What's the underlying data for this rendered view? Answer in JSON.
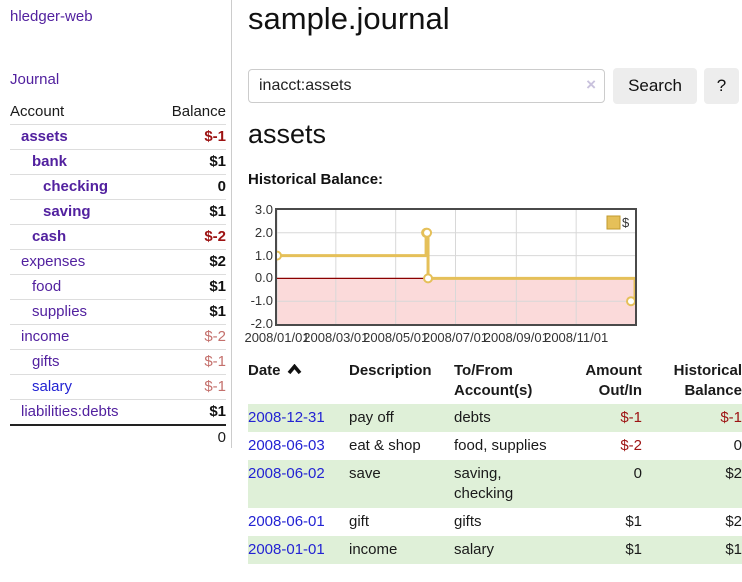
{
  "sidebar": {
    "brand": "hledger-web",
    "nav_journal": "Journal",
    "columns": [
      "Account",
      "Balance"
    ],
    "accounts": [
      {
        "name": "assets",
        "level": 1,
        "strong": true,
        "link": "purple",
        "balance": "$-1",
        "bal": "neg-strong"
      },
      {
        "name": "bank",
        "level": 2,
        "strong": true,
        "link": "purple",
        "balance": "$1",
        "bal": "pos"
      },
      {
        "name": "checking",
        "level": 3,
        "strong": true,
        "link": "purple",
        "balance": "0",
        "bal": "pos"
      },
      {
        "name": "saving",
        "level": 3,
        "strong": true,
        "link": "purple",
        "balance": "$1",
        "bal": "pos"
      },
      {
        "name": "cash",
        "level": 2,
        "strong": true,
        "link": "purple",
        "balance": "$-2",
        "bal": "neg-strong"
      },
      {
        "name": "expenses",
        "level": 1,
        "strong": false,
        "link": "purple",
        "balance": "$2",
        "bal": "pos"
      },
      {
        "name": "food",
        "level": 2,
        "strong": false,
        "link": "purple",
        "balance": "$1",
        "bal": "pos"
      },
      {
        "name": "supplies",
        "level": 2,
        "strong": false,
        "link": "purple",
        "balance": "$1",
        "bal": "pos"
      },
      {
        "name": "income",
        "level": 1,
        "strong": false,
        "link": "purple",
        "balance": "$-2",
        "bal": "neg"
      },
      {
        "name": "gifts",
        "level": 2,
        "strong": false,
        "link": "purple",
        "balance": "$-1",
        "bal": "neg"
      },
      {
        "name": "salary",
        "level": 2,
        "strong": false,
        "link": "blue",
        "balance": "$-1",
        "bal": "neg"
      },
      {
        "name": "liabilities:debts",
        "level": 1,
        "strong": false,
        "link": "purple",
        "balance": "$1",
        "bal": "pos"
      }
    ],
    "total": "0"
  },
  "main": {
    "title": "sample.journal",
    "search": {
      "query": "inacct:assets",
      "clear_icon": "×",
      "button": "Search",
      "help": "?"
    },
    "account_heading": "assets"
  },
  "register": {
    "columns": [
      "Date",
      "Description",
      "To/From Account(s)",
      "Amount Out/In",
      "Historical Balance"
    ],
    "sort": "asc",
    "rows": [
      {
        "date": "2008-12-31",
        "description": "pay off",
        "accounts": "debts",
        "amount": "$-1",
        "amount_neg": true,
        "balance": "$-1",
        "balance_neg": true
      },
      {
        "date": "2008-06-03",
        "description": "eat & shop",
        "accounts": "food, supplies",
        "amount": "$-2",
        "amount_neg": true,
        "balance": "0",
        "balance_neg": false
      },
      {
        "date": "2008-06-02",
        "description": "save",
        "accounts": "saving, checking",
        "amount": "0",
        "amount_neg": false,
        "balance": "$2",
        "balance_neg": false
      },
      {
        "date": "2008-06-01",
        "description": "gift",
        "accounts": "gifts",
        "amount": "$1",
        "amount_neg": false,
        "balance": "$2",
        "balance_neg": false
      },
      {
        "date": "2008-01-01",
        "description": "income",
        "accounts": "salary",
        "amount": "$1",
        "amount_neg": false,
        "balance": "$1",
        "balance_neg": false
      }
    ]
  },
  "chart_data": {
    "type": "line",
    "title": "Historical Balance:",
    "step": true,
    "series": [
      {
        "name": "$",
        "points": [
          [
            "2008-01-01",
            1
          ],
          [
            "2008-06-01",
            2
          ],
          [
            "2008-06-02",
            2
          ],
          [
            "2008-06-03",
            0
          ],
          [
            "2008-12-31",
            -1
          ]
        ]
      }
    ],
    "ylim": [
      -2,
      3
    ],
    "yticks": [
      {
        "label": "3.0",
        "value": 3
      },
      {
        "label": "2.0",
        "value": 2
      },
      {
        "label": "1.0",
        "value": 1
      },
      {
        "label": "0.0",
        "value": 0
      },
      {
        "label": "-1.0",
        "value": -1
      },
      {
        "label": "-2.0",
        "value": -2
      }
    ],
    "xlim": [
      "2008-01-01",
      "2008-12-31"
    ],
    "xticks": [
      {
        "label": "2008/01/01",
        "date": "2008-01-01"
      },
      {
        "label": "2008/03/01",
        "date": "2008-03-01"
      },
      {
        "label": "2008/05/01",
        "date": "2008-05-01"
      },
      {
        "label": "2008/07/01",
        "date": "2008-07-01"
      },
      {
        "label": "2008/09/01",
        "date": "2008-09-01"
      },
      {
        "label": "2008/11/01",
        "date": "2008-11-01"
      }
    ],
    "legend": {
      "label": "$",
      "position": "top-right"
    },
    "grid": true,
    "negative_region_shaded": true
  },
  "icons": {
    "sort": "chevron-up",
    "clear": "x"
  },
  "colors": {
    "text": "#1a1a1a",
    "brand-purple": "#52219f",
    "link-blue": "#2323d3",
    "neg-strong": "#9d1212",
    "neg-soft": "#c4706c",
    "row-green": "#dff0d8",
    "chart-line": "#e5c059",
    "chart-line-edge": "#c19a2e",
    "chart-neg-fill": "#fbdada",
    "chart-zero-line": "#8b0000",
    "grid-line": "#d8d8d8",
    "plot-border": "#4a4a4a",
    "divider": "#cccccc",
    "row-border": "#dddddd",
    "button-bg": "#ededed"
  }
}
